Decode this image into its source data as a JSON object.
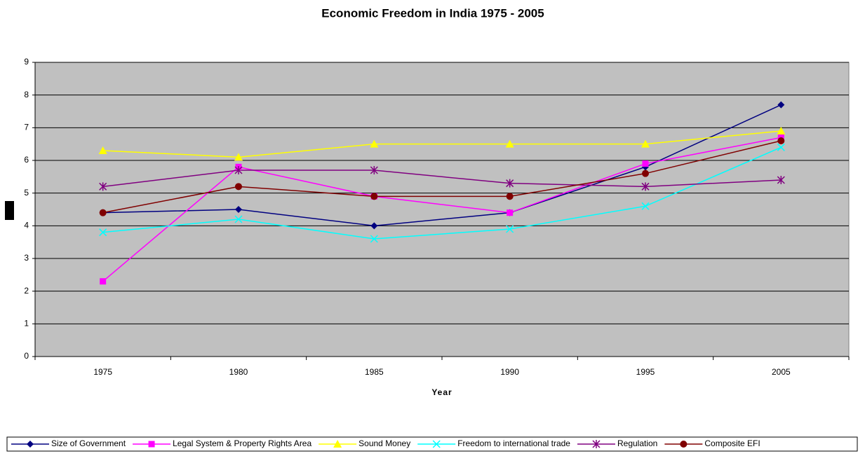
{
  "chart_data": {
    "type": "line",
    "title": "Economic Freedom in India 1975 - 2005",
    "x_label": "Year",
    "categories": [
      "1975",
      "1980",
      "1985",
      "1990",
      "1995",
      "2005"
    ],
    "ylim": [
      0,
      9
    ],
    "yticks": [
      0,
      1,
      2,
      3,
      4,
      5,
      6,
      7,
      8,
      9
    ],
    "grid": true,
    "legend": "bottom",
    "series": [
      {
        "name": "Size of Government",
        "color": "#000080",
        "marker": "diamond",
        "values": [
          4.4,
          4.5,
          4.0,
          4.4,
          5.8,
          7.7
        ]
      },
      {
        "name": "Legal System & Property Rights Area",
        "color": "#ff00ff",
        "marker": "square",
        "values": [
          2.3,
          5.8,
          4.9,
          4.4,
          5.9,
          6.7
        ]
      },
      {
        "name": "Sound Money",
        "color": "#ffff00",
        "marker": "triangle",
        "values": [
          6.3,
          6.1,
          6.5,
          6.5,
          6.5,
          6.9
        ]
      },
      {
        "name": "Freedom to international trade",
        "color": "#00ffff",
        "marker": "x",
        "values": [
          3.8,
          4.2,
          3.6,
          3.9,
          4.6,
          6.4
        ]
      },
      {
        "name": "Regulation",
        "color": "#800080",
        "marker": "star",
        "values": [
          5.2,
          5.7,
          5.7,
          5.3,
          5.2,
          5.4
        ]
      },
      {
        "name": "Composite EFI",
        "color": "#800000",
        "marker": "circle",
        "values": [
          4.4,
          5.2,
          4.9,
          4.9,
          5.6,
          6.6
        ]
      }
    ]
  }
}
